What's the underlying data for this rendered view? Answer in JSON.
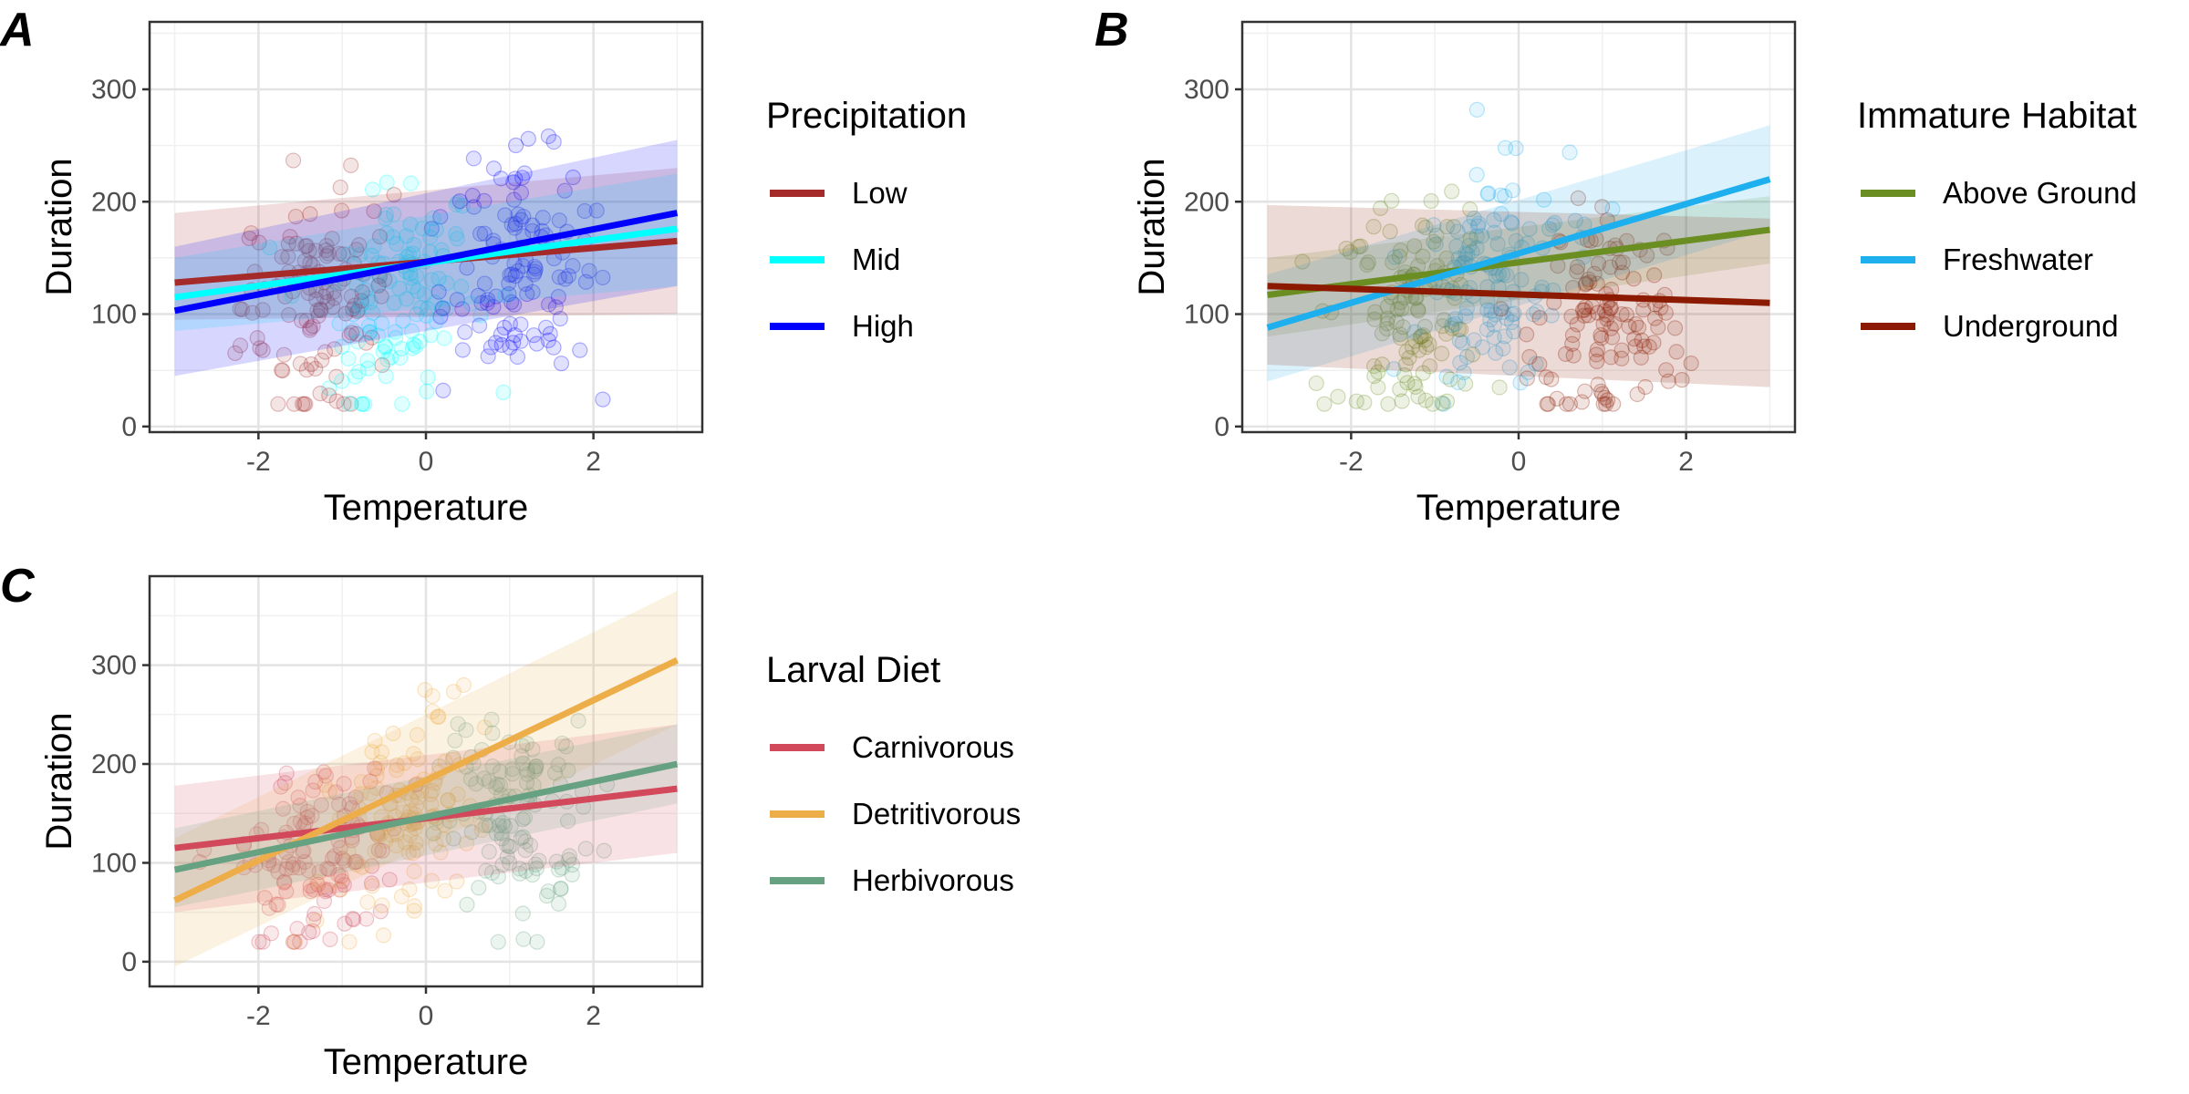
{
  "chart_data": [
    {
      "panel": "A",
      "type": "scatter",
      "xlabel": "Temperature",
      "ylabel": "Duration",
      "xlim": [
        -3.3,
        3.3
      ],
      "ylim": [
        -5,
        360
      ],
      "xticks": [
        "-2",
        "0",
        "2"
      ],
      "yticks": [
        "0",
        "100",
        "200",
        "300"
      ],
      "grid": true,
      "legend": {
        "title": "Precipitation",
        "placement": "right"
      },
      "series": [
        {
          "name": "Low",
          "color": "#a52a2a",
          "fit": {
            "x": [
              -3,
              3
            ],
            "y": [
              128,
              165
            ]
          },
          "band_low": [
            95,
            100
          ],
          "band_high": [
            190,
            230
          ]
        },
        {
          "name": "Mid",
          "color": "#00ffff",
          "fit": {
            "x": [
              -3,
              3
            ],
            "y": [
              115,
              176
            ]
          },
          "band_low": [
            85,
            125
          ],
          "band_high": [
            150,
            225
          ]
        },
        {
          "name": "High",
          "color": "#0000ff",
          "fit": {
            "x": [
              -3,
              3
            ],
            "y": [
              103,
              190
            ]
          },
          "band_low": [
            45,
            125
          ],
          "band_high": [
            160,
            255
          ]
        }
      ]
    },
    {
      "panel": "B",
      "type": "scatter",
      "xlabel": "Temperature",
      "ylabel": "Duration",
      "xlim": [
        -3.3,
        3.3
      ],
      "ylim": [
        -5,
        360
      ],
      "xticks": [
        "-2",
        "0",
        "2"
      ],
      "yticks": [
        "0",
        "100",
        "200",
        "300"
      ],
      "grid": true,
      "legend": {
        "title": "Immature Habitat",
        "placement": "right"
      },
      "series": [
        {
          "name": "Above Ground",
          "color": "#6b8e23",
          "fit": {
            "x": [
              -3,
              3
            ],
            "y": [
              117,
              175
            ]
          },
          "band_low": [
            80,
            145
          ],
          "band_high": [
            150,
            205
          ]
        },
        {
          "name": "Freshwater",
          "color": "#1eb0ee",
          "fit": {
            "x": [
              -3,
              3
            ],
            "y": [
              88,
              220
            ]
          },
          "band_low": [
            40,
            175
          ],
          "band_high": [
            135,
            268
          ]
        },
        {
          "name": "Underground",
          "color": "#8b1a00",
          "fit": {
            "x": [
              -3,
              3
            ],
            "y": [
              125,
              110
            ]
          },
          "band_low": [
            55,
            35
          ],
          "band_high": [
            197,
            185
          ]
        }
      ]
    },
    {
      "panel": "C",
      "type": "scatter",
      "xlabel": "Temperature",
      "ylabel": "Duration",
      "xlim": [
        -3.3,
        3.3
      ],
      "ylim": [
        -25,
        390
      ],
      "xticks": [
        "-2",
        "0",
        "2"
      ],
      "yticks": [
        "0",
        "100",
        "200",
        "300"
      ],
      "grid": true,
      "legend": {
        "title": "Larval Diet",
        "placement": "right"
      },
      "series": [
        {
          "name": "Carnivorous",
          "color": "#d1495b",
          "fit": {
            "x": [
              -3,
              3
            ],
            "y": [
              115,
              175
            ]
          },
          "band_low": [
            50,
            110
          ],
          "band_high": [
            178,
            240
          ]
        },
        {
          "name": "Detritivorous",
          "color": "#edae49",
          "fit": {
            "x": [
              -3,
              3
            ],
            "y": [
              62,
              305
            ]
          },
          "band_low": [
            -5,
            240
          ],
          "band_high": [
            125,
            375
          ]
        },
        {
          "name": "Herbivorous",
          "color": "#66a182",
          "fit": {
            "x": [
              -3,
              3
            ],
            "y": [
              93,
              200
            ]
          },
          "band_low": [
            55,
            160
          ],
          "band_high": [
            135,
            240
          ]
        }
      ]
    }
  ]
}
